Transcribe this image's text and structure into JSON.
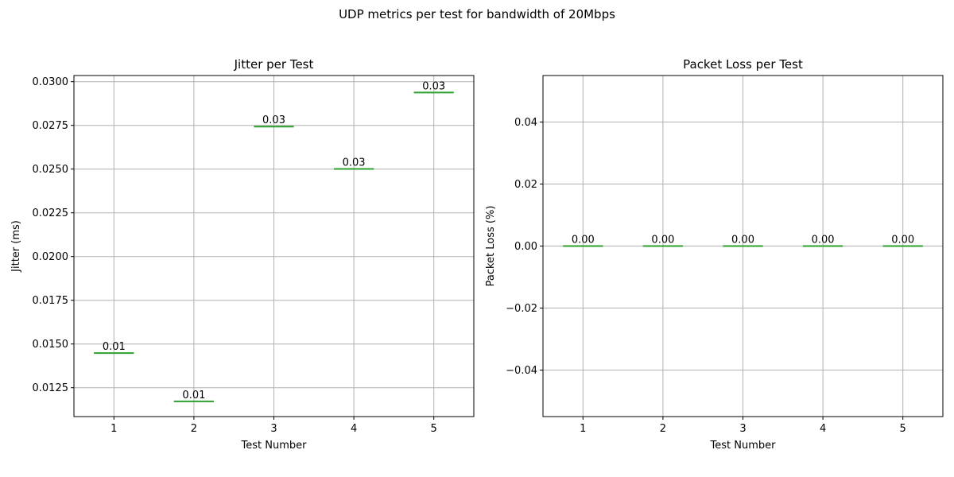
{
  "suptitle": "UDP metrics per test for bandwidth of 20Mbps",
  "chart_data": [
    {
      "type": "box",
      "title": "Jitter per Test",
      "xlabel": "Test Number",
      "ylabel": "Jitter (ms)",
      "categories": [
        "1",
        "2",
        "3",
        "4",
        "5"
      ],
      "values": [
        0.01448,
        0.01172,
        0.02743,
        0.02501,
        0.02938
      ],
      "value_labels": [
        "0.01",
        "0.01",
        "0.03",
        "0.03",
        "0.03"
      ],
      "ylim": [
        0.01085,
        0.03035
      ],
      "yticks": [
        0.0125,
        0.015,
        0.0175,
        0.02,
        0.0225,
        0.025,
        0.0275,
        0.03
      ],
      "ytick_labels": [
        "0.0125",
        "0.0150",
        "0.0175",
        "0.0200",
        "0.0225",
        "0.0250",
        "0.0275",
        "0.0300"
      ],
      "grid": true,
      "median_color": "#2ca02c"
    },
    {
      "type": "box",
      "title": "Packet Loss per Test",
      "xlabel": "Test Number",
      "ylabel": "Packet Loss (%)",
      "categories": [
        "1",
        "2",
        "3",
        "4",
        "5"
      ],
      "values": [
        0,
        0,
        0,
        0,
        0
      ],
      "value_labels": [
        "0.00",
        "0.00",
        "0.00",
        "0.00",
        "0.00"
      ],
      "ylim": [
        -0.055,
        0.055
      ],
      "yticks": [
        -0.04,
        -0.02,
        0,
        0.02,
        0.04
      ],
      "ytick_labels": [
        "−0.04",
        "−0.02",
        "0.00",
        "0.02",
        "0.04"
      ],
      "grid": true,
      "median_color": "#2ca02c"
    }
  ]
}
